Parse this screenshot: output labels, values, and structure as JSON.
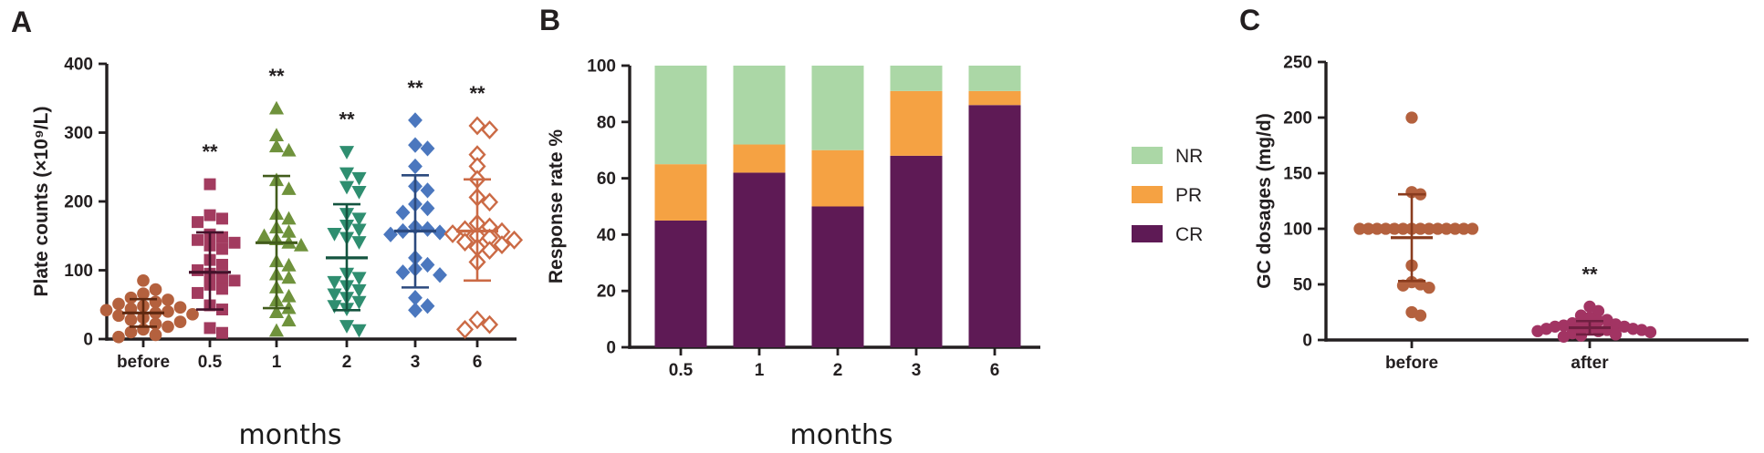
{
  "figure": {
    "background": "#ffffff",
    "text_color": "#231F20",
    "axis_color": "#231F20"
  },
  "panels": [
    {
      "letter": "A"
    },
    {
      "letter": "B"
    },
    {
      "letter": "C"
    }
  ],
  "chart_data": [
    {
      "panel": "A",
      "type": "scatter",
      "title": "",
      "xlabel": "months",
      "ylabel": "Plate counts (×10⁹/L)",
      "ylim": [
        0,
        400
      ],
      "yticks": [
        0,
        100,
        200,
        300,
        400
      ],
      "categories": [
        "before",
        "0.5",
        "1",
        "2",
        "3",
        "6"
      ],
      "significance": [
        "",
        "**",
        "**",
        "**",
        "**",
        "**"
      ],
      "groups": [
        {
          "label": "before",
          "marker": "circle",
          "filled": true,
          "color": "#B4613E",
          "line_color": "#5e2810",
          "mean": 38,
          "err_low": 18,
          "err_high": 58,
          "values": [
            85,
            72,
            66,
            60,
            57,
            54,
            51,
            48,
            46,
            44,
            42,
            40,
            38,
            36,
            34,
            31,
            28,
            25,
            22,
            18,
            14,
            10,
            6,
            3
          ]
        },
        {
          "label": "0.5",
          "marker": "square",
          "filled": true,
          "color": "#A23B5F",
          "line_color": "#43112a",
          "mean": 97,
          "err_low": 43,
          "err_high": 155,
          "values": [
            225,
            180,
            175,
            170,
            152,
            148,
            144,
            140,
            136,
            131,
            115,
            108,
            100,
            95,
            90,
            85,
            79,
            73,
            67,
            49,
            43,
            16,
            9
          ]
        },
        {
          "label": "1",
          "marker": "triangle-up",
          "filled": true,
          "color": "#6F923C",
          "line_color": "#425c1c",
          "mean": 140,
          "err_low": 45,
          "err_high": 237,
          "values": [
            335,
            296,
            280,
            274,
            231,
            218,
            182,
            175,
            162,
            156,
            150,
            145,
            140,
            136,
            113,
            107,
            94,
            89,
            75,
            62,
            56,
            45,
            39,
            27,
            12
          ]
        },
        {
          "label": "2",
          "marker": "triangle-down",
          "filled": true,
          "color": "#2F8E70",
          "line_color": "#14543f",
          "mean": 118,
          "err_low": 42,
          "err_high": 196,
          "values": [
            272,
            241,
            234,
            221,
            214,
            182,
            175,
            165,
            159,
            153,
            147,
            141,
            95,
            89,
            83,
            77,
            71,
            65,
            60,
            54,
            48,
            44,
            19,
            13
          ]
        },
        {
          "label": "3",
          "marker": "diamond",
          "filled": true,
          "color": "#4B77BE",
          "line_color": "#2c4a7e",
          "mean": 157,
          "err_low": 75,
          "err_high": 238,
          "values": [
            318,
            282,
            277,
            251,
            222,
            216,
            196,
            190,
            184,
            163,
            160,
            157,
            155,
            152,
            118,
            108,
            102,
            97,
            93,
            60,
            48,
            42
          ]
        },
        {
          "label": "6",
          "marker": "diamond",
          "filled": false,
          "color": "#CB6A45",
          "line_color": "#CB6A45",
          "mean": 157,
          "err_low": 85,
          "err_high": 232,
          "values": [
            310,
            304,
            268,
            251,
            232,
            206,
            199,
            168,
            163,
            159,
            156,
            153,
            150,
            147,
            144,
            141,
            137,
            133,
            129,
            112,
            28,
            21,
            14
          ]
        }
      ]
    },
    {
      "panel": "B",
      "type": "stacked-bar",
      "title": "",
      "xlabel": "months",
      "ylabel": "Response rate %",
      "ylim": [
        0,
        100
      ],
      "yticks": [
        0,
        20,
        40,
        60,
        80,
        100
      ],
      "categories": [
        "0.5",
        "1",
        "2",
        "3",
        "6"
      ],
      "series": [
        {
          "name": "CR",
          "color": "#5E1A55",
          "values": [
            45,
            62,
            50,
            68,
            86
          ]
        },
        {
          "name": "PR",
          "color": "#F5A243",
          "values": [
            20,
            10,
            20,
            23,
            5
          ]
        },
        {
          "name": "NR",
          "color": "#ABD7A6",
          "values": [
            35,
            28,
            30,
            9,
            9
          ]
        }
      ],
      "legend": {
        "position": "right",
        "order": [
          "NR",
          "PR",
          "CR"
        ]
      }
    },
    {
      "panel": "C",
      "type": "scatter",
      "title": "",
      "xlabel": "",
      "ylabel": "GC dosages (mg/d)",
      "ylim": [
        0,
        250
      ],
      "yticks": [
        0,
        50,
        100,
        150,
        200,
        250
      ],
      "categories": [
        "before",
        "after"
      ],
      "significance": [
        "",
        "**"
      ],
      "groups": [
        {
          "label": "before",
          "marker": "circle",
          "filled": true,
          "color": "#B4613E",
          "line_color": "#8a3c1e",
          "mean": 92,
          "err_low": 53,
          "err_high": 131,
          "values": [
            200,
            133,
            131,
            100,
            100,
            100,
            100,
            100,
            100,
            100,
            100,
            100,
            100,
            100,
            100,
            100,
            100,
            67,
            52,
            50,
            49,
            47,
            25,
            22
          ]
        },
        {
          "label": "after",
          "marker": "circle",
          "filled": true,
          "color": "#A23463",
          "line_color": "#701f41",
          "mean": 11,
          "err_low": 5,
          "err_high": 17,
          "values": [
            30,
            26,
            22,
            20,
            18,
            17,
            15,
            14,
            13,
            13,
            12,
            12,
            11,
            10,
            10,
            9,
            9,
            8,
            8,
            7,
            6,
            5,
            4,
            3
          ]
        }
      ]
    }
  ]
}
